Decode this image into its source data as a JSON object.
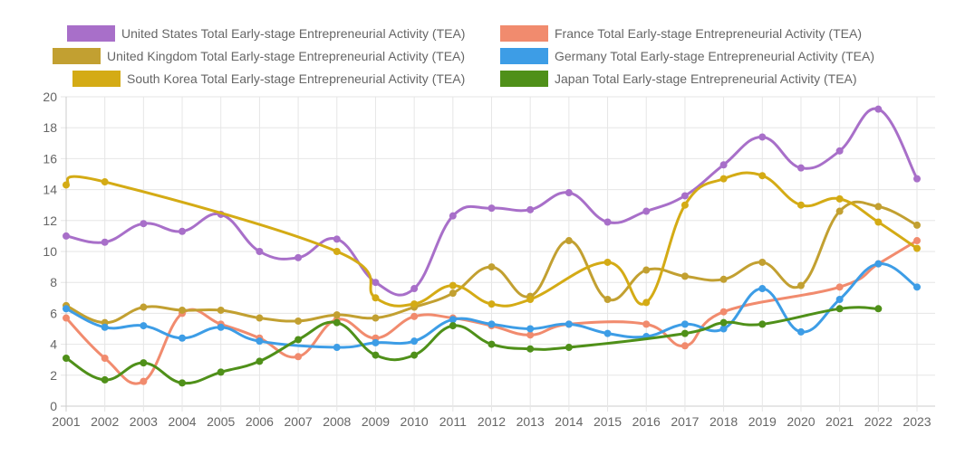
{
  "chart_data": {
    "type": "line",
    "title": "",
    "xlabel": "",
    "ylabel": "",
    "ylim": [
      0,
      20
    ],
    "yticks": [
      "0",
      "2",
      "4",
      "6",
      "8",
      "10",
      "12",
      "14",
      "16",
      "18",
      "20"
    ],
    "categories": [
      "2001",
      "2002",
      "2003",
      "2004",
      "2005",
      "2006",
      "2007",
      "2008",
      "2009",
      "2010",
      "2011",
      "2012",
      "2013",
      "2014",
      "2015",
      "2016",
      "2017",
      "2018",
      "2019",
      "2020",
      "2021",
      "2022",
      "2023"
    ],
    "grid": true,
    "legend_position": "top",
    "series": [
      {
        "name": "United States Total Early-stage Entrepreneurial Activity (TEA)",
        "color": "#a86fc9",
        "values": [
          11.0,
          10.6,
          11.8,
          11.3,
          12.4,
          10.0,
          9.6,
          10.8,
          8.0,
          7.6,
          12.3,
          12.8,
          12.7,
          13.8,
          11.9,
          12.6,
          13.6,
          15.6,
          17.4,
          15.4,
          16.5,
          19.2,
          14.7
        ]
      },
      {
        "name": "France Total Early-stage Entrepreneurial Activity (TEA)",
        "color": "#f18b6e",
        "values": [
          5.7,
          3.1,
          1.6,
          6.0,
          5.3,
          4.4,
          3.2,
          5.6,
          4.4,
          5.8,
          5.7,
          5.2,
          4.6,
          5.3,
          null,
          5.3,
          3.9,
          6.1,
          null,
          null,
          7.7,
          9.2,
          10.7
        ]
      },
      {
        "name": "United Kingdom Total Early-stage Entrepreneurial Activity (TEA)",
        "color": "#c2a031",
        "values": [
          6.5,
          5.4,
          6.4,
          6.2,
          6.2,
          5.7,
          5.5,
          5.9,
          5.7,
          6.4,
          7.3,
          9.0,
          7.1,
          10.7,
          6.9,
          8.8,
          8.4,
          8.2,
          9.3,
          7.8,
          12.6,
          12.9,
          11.7
        ]
      },
      {
        "name": "Germany Total Early-stage Entrepreneurial Activity (TEA)",
        "color": "#3d9de6",
        "values": [
          6.3,
          5.1,
          5.2,
          4.4,
          5.1,
          4.2,
          null,
          3.8,
          4.1,
          4.2,
          5.6,
          5.3,
          5.0,
          5.3,
          4.7,
          4.5,
          5.3,
          5.0,
          7.6,
          4.8,
          6.9,
          9.2,
          7.7
        ]
      },
      {
        "name": "South Korea Total Early-stage Entrepreneurial Activity (TEA)",
        "color": "#d4ab15",
        "values": [
          14.3,
          14.5,
          null,
          null,
          null,
          null,
          null,
          10.0,
          7.0,
          6.6,
          7.8,
          6.6,
          6.9,
          null,
          9.3,
          6.7,
          13.0,
          14.7,
          14.9,
          13.0,
          13.4,
          11.9,
          10.2
        ]
      },
      {
        "name": "Japan Total Early-stage Entrepreneurial Activity (TEA)",
        "color": "#4f9019",
        "values": [
          3.1,
          1.7,
          2.8,
          1.5,
          2.2,
          2.9,
          4.3,
          5.4,
          3.3,
          3.3,
          5.2,
          4.0,
          3.7,
          3.8,
          null,
          null,
          4.7,
          5.4,
          5.3,
          null,
          6.3,
          6.3,
          null
        ]
      }
    ]
  }
}
